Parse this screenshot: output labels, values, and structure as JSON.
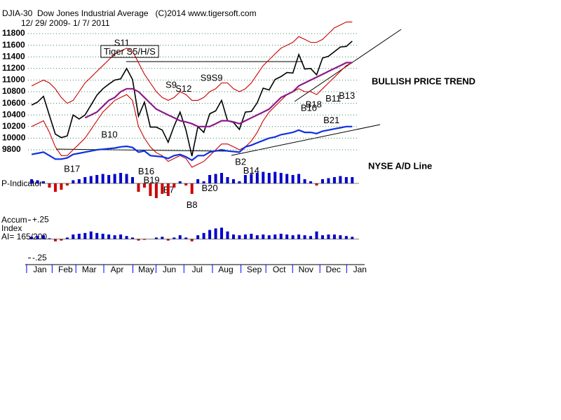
{
  "chart_data": [
    {
      "type": "line",
      "title": "DJIA-30  Dow Jones Industrial Average   (C)2014 www.tigersoft.com",
      "subtitle": "12/ 29/ 2009- 1/ 7/ 2011",
      "xlim": [
        -0.6,
        55.5
      ],
      "ylim": [
        9600,
        12000
      ],
      "yticks": [
        9800,
        10000,
        10200,
        10400,
        10600,
        10800,
        11000,
        11200,
        11400,
        11600,
        11800
      ],
      "grid": true,
      "grid_color": "#2e8b57",
      "series": [
        {
          "name": "DJIA",
          "color": "#000000",
          "values": [
            10570,
            10620,
            10720,
            10390,
            10070,
            10010,
            10040,
            10400,
            10330,
            10400,
            10570,
            10740,
            10850,
            10930,
            11000,
            11020,
            11200,
            11010,
            10380,
            10620,
            10190,
            10190,
            10140,
            9930,
            10210,
            10450,
            10140,
            9690,
            10200,
            10100,
            10420,
            10470,
            10650,
            10300,
            10270,
            10150,
            10450,
            10460,
            10610,
            10860,
            10830,
            11010,
            11060,
            11130,
            11120,
            11440,
            11190,
            11200,
            11090,
            11380,
            11410,
            11490,
            11570,
            11580,
            11670
          ]
        },
        {
          "name": "Upper band",
          "color": "#cc0000",
          "values": [
            10900,
            10950,
            11000,
            10950,
            10850,
            10700,
            10600,
            10650,
            10800,
            10950,
            11050,
            11150,
            11250,
            11350,
            11450,
            11500,
            11550,
            11500,
            11300,
            11100,
            10950,
            10800,
            10700,
            10650,
            10700,
            10800,
            10750,
            10650,
            10650,
            10700,
            10800,
            10850,
            10950,
            10950,
            10850,
            10800,
            10850,
            10950,
            11100,
            11250,
            11350,
            11450,
            11550,
            11600,
            11650,
            11750,
            11700,
            11650,
            11650,
            11700,
            11800,
            11900,
            11950,
            12000,
            12000
          ]
        },
        {
          "name": "Lower band",
          "color": "#cc0000",
          "values": [
            10200,
            10250,
            10300,
            10100,
            9850,
            9700,
            9700,
            9800,
            9900,
            10000,
            10150,
            10300,
            10450,
            10550,
            10650,
            10700,
            10750,
            10650,
            10200,
            10000,
            9850,
            9750,
            9700,
            9600,
            9650,
            9700,
            9650,
            9500,
            9550,
            9600,
            9700,
            9800,
            9900,
            9900,
            9850,
            9800,
            9850,
            9950,
            10100,
            10300,
            10450,
            10550,
            10650,
            10750,
            10800,
            10850,
            10800,
            10800,
            10750,
            10850,
            10950,
            11050,
            11150,
            11250,
            11300
          ]
        },
        {
          "name": "Moving average",
          "color": "#8b1a8b",
          "values": [
            null,
            null,
            null,
            null,
            null,
            null,
            null,
            null,
            null,
            10350,
            10400,
            10450,
            10550,
            10650,
            10700,
            10800,
            10850,
            10850,
            10800,
            10700,
            10600,
            10500,
            10450,
            10400,
            10350,
            10300,
            10280,
            10250,
            10200,
            10200,
            10200,
            10250,
            10300,
            10300,
            10280,
            10250,
            10300,
            10350,
            10400,
            10450,
            10500,
            10600,
            10700,
            10750,
            10800,
            10900,
            10950,
            11000,
            11050,
            11100,
            11150,
            11200,
            11250,
            11300,
            11300
          ]
        },
        {
          "name": "NYSE A/D Line",
          "color": "#1030e0",
          "values": [
            9720,
            9740,
            9760,
            9700,
            9640,
            9640,
            9660,
            9720,
            9740,
            9760,
            9780,
            9800,
            9810,
            9820,
            9830,
            9850,
            9860,
            9840,
            9760,
            9780,
            9700,
            9690,
            9680,
            9650,
            9700,
            9720,
            9680,
            9620,
            9700,
            9700,
            9760,
            9780,
            9800,
            9780,
            9770,
            9760,
            9850,
            9880,
            9920,
            9960,
            10000,
            10020,
            10060,
            10080,
            10100,
            10140,
            10100,
            10100,
            10080,
            10120,
            10140,
            10160,
            10180,
            10200,
            10200
          ]
        }
      ],
      "annotations": [
        {
          "text": "S11",
          "at": [
            15.2,
            11631
          ]
        },
        {
          "text": "Tiger S5/H/S",
          "at": [
            16.5,
            11480
          ]
        },
        {
          "text": "S9",
          "at": [
            23.5,
            10910
          ]
        },
        {
          "text": "S12",
          "at": [
            25.6,
            10840
          ]
        },
        {
          "text": "S9S9",
          "at": [
            30.3,
            11030
          ]
        },
        {
          "text": "B10",
          "at": [
            13.1,
            10050
          ]
        },
        {
          "text": "B17",
          "at": [
            6.8,
            9460
          ]
        },
        {
          "text": "B2",
          "at": [
            35.2,
            9580
          ]
        },
        {
          "text": "B14",
          "at": [
            37,
            9430
          ]
        },
        {
          "text": "B10",
          "at": [
            46.7,
            10510
          ]
        },
        {
          "text": "B18",
          "at": [
            47.5,
            10570
          ]
        },
        {
          "text": "B11",
          "at": [
            50.8,
            10670
          ]
        },
        {
          "text": "B13",
          "at": [
            53.1,
            10720
          ]
        },
        {
          "text": "B21",
          "at": [
            50.5,
            10300
          ]
        },
        {
          "text": "B16",
          "at": [
            19.3,
            9420
          ]
        },
        {
          "text": "B19",
          "at": [
            20.2,
            9270
          ]
        },
        {
          "text": "B7",
          "at": [
            23.1,
            9100
          ]
        },
        {
          "text": "B20",
          "at": [
            30,
            9130
          ]
        },
        {
          "text": "B8",
          "at": [
            27,
            8840
          ]
        }
      ],
      "side_labels": [
        "BULLISH PRICE TREND",
        "NYSE A/D Line"
      ]
    },
    {
      "type": "bar",
      "title": "P-Indicator",
      "xlim": [
        -0.6,
        55.5
      ],
      "ylim": [
        -100,
        100
      ],
      "color": "#0000cc",
      "negative_color": "#cc0000",
      "values": [
        20,
        15,
        10,
        -20,
        -40,
        -30,
        -10,
        15,
        20,
        30,
        35,
        40,
        45,
        40,
        45,
        50,
        45,
        30,
        -40,
        -20,
        -60,
        -70,
        -50,
        -60,
        -20,
        10,
        -10,
        -50,
        20,
        10,
        40,
        45,
        50,
        30,
        20,
        10,
        40,
        45,
        50,
        55,
        50,
        55,
        50,
        45,
        40,
        45,
        20,
        10,
        -10,
        20,
        25,
        30,
        35,
        30,
        30
      ]
    },
    {
      "type": "bar",
      "title": [
        "Accum",
        "Index",
        "AI= 165/200"
      ],
      "xlim": [
        -0.6,
        55.5
      ],
      "ylim": [
        -0.3,
        0.3
      ],
      "yticks": [
        {
          "value": 0.25,
          "label": "+.25"
        },
        {
          "value": -0.25,
          "label": "-.25"
        }
      ],
      "color": "#0000cc",
      "negative_color": "#cc0000",
      "values": [
        0.03,
        0.04,
        0.05,
        0.01,
        -0.03,
        -0.02,
        0.02,
        0.06,
        0.07,
        0.08,
        0.1,
        0.08,
        0.07,
        0.06,
        0.05,
        0.06,
        0.04,
        0.02,
        -0.02,
        -0.01,
        0,
        0.02,
        0.03,
        -0.02,
        0.02,
        0.05,
        0.02,
        -0.03,
        0.05,
        0.08,
        0.12,
        0.14,
        0.15,
        0.1,
        0.06,
        0.05,
        0.06,
        0.07,
        0.05,
        0.06,
        0.05,
        0.06,
        0.07,
        0.06,
        0.05,
        0.06,
        0.05,
        0.04,
        0.1,
        0.05,
        0.06,
        0.06,
        0.05,
        0.04,
        0.03
      ],
      "xticks": [
        {
          "value": 1.4,
          "label": "Jan"
        },
        {
          "value": 5.7,
          "label": "Feb"
        },
        {
          "value": 9.7,
          "label": "Mar"
        },
        {
          "value": 14.4,
          "label": "Apr"
        },
        {
          "value": 19.3,
          "label": "May"
        },
        {
          "value": 23.2,
          "label": "Jun"
        },
        {
          "value": 27.9,
          "label": "Jul"
        },
        {
          "value": 32.7,
          "label": "Aug"
        },
        {
          "value": 37.5,
          "label": "Sep"
        },
        {
          "value": 41.7,
          "label": "Oct"
        },
        {
          "value": 46.2,
          "label": "Nov"
        },
        {
          "value": 50.8,
          "label": "Dec"
        },
        {
          "value": 55.3,
          "label": "Jan"
        }
      ]
    }
  ]
}
